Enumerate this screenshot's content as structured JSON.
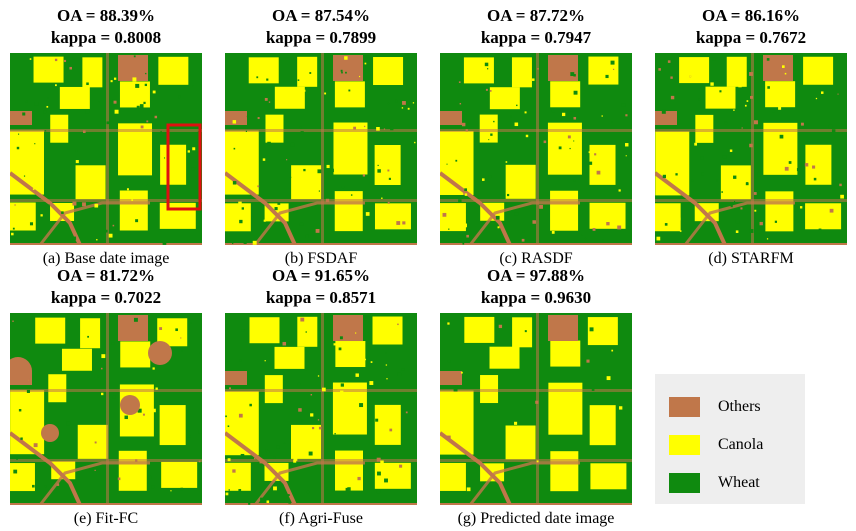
{
  "panels": [
    {
      "oa": "OA = 88.39%",
      "kappa": "kappa = 0.8008",
      "caption": "(a) Base date image",
      "highlight_box": true
    },
    {
      "oa": "OA = 87.54%",
      "kappa": "kappa = 0.7899",
      "caption": "(b) FSDAF",
      "highlight_box": false
    },
    {
      "oa": "OA = 87.72%",
      "kappa": "kappa = 0.7947",
      "caption": "(c) RASDF",
      "highlight_box": false
    },
    {
      "oa": "OA = 86.16%",
      "kappa": "kappa = 0.7672",
      "caption": "(d) STARFM",
      "highlight_box": false
    },
    {
      "oa": "OA = 81.72%",
      "kappa": "kappa = 0.7022",
      "caption": "(e) Fit-FC",
      "highlight_box": false
    },
    {
      "oa": "OA = 91.65%",
      "kappa": "kappa = 0.8571",
      "caption": "(f) Agri-Fuse",
      "highlight_box": false
    },
    {
      "oa": "OA = 97.88%",
      "kappa": "kappa = 0.9630",
      "caption": "(g) Predicted date image",
      "highlight_box": false
    }
  ],
  "legend": [
    {
      "label": "Others",
      "color": "#c0774a"
    },
    {
      "label": "Canola",
      "color": "#ffff00"
    },
    {
      "label": "Wheat",
      "color": "#0f8a0f"
    }
  ],
  "colors": {
    "wheat": "#0f8a0f",
    "canola": "#ffff00",
    "others": "#c0774a",
    "highlight": "#e01010"
  }
}
